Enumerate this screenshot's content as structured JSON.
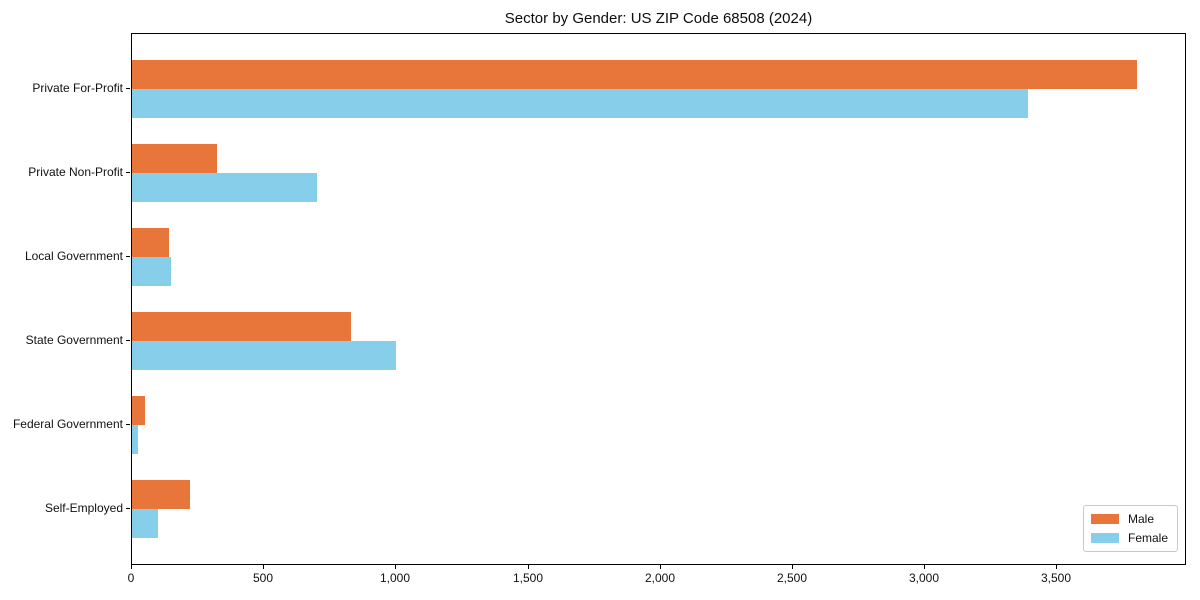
{
  "chart_data": {
    "type": "bar",
    "orientation": "horizontal",
    "title": "Sector by Gender: US ZIP Code 68508 (2024)",
    "categories": [
      "Private For-Profit",
      "Private Non-Profit",
      "Local Government",
      "State Government",
      "Federal Government",
      "Self-Employed"
    ],
    "series": [
      {
        "name": "Male",
        "color": "#E8763A",
        "values": [
          3800,
          320,
          140,
          830,
          48,
          220
        ]
      },
      {
        "name": "Female",
        "color": "#87CEEB",
        "values": [
          3390,
          700,
          148,
          1000,
          23,
          100
        ]
      }
    ],
    "xlabel": "",
    "ylabel": "",
    "xlim": [
      0,
      3990
    ],
    "xticks": [
      0,
      500,
      1000,
      1500,
      2000,
      2500,
      3000,
      3500
    ],
    "xtick_labels": [
      "0",
      "500",
      "1,000",
      "1,500",
      "2,000",
      "2,500",
      "3,000",
      "3,500"
    ],
    "grid": false,
    "legend_position": "lower right",
    "colors": {
      "spine": "#000000",
      "text": "#111111",
      "background": "#ffffff",
      "legend_border": "#c9c9c9"
    }
  }
}
